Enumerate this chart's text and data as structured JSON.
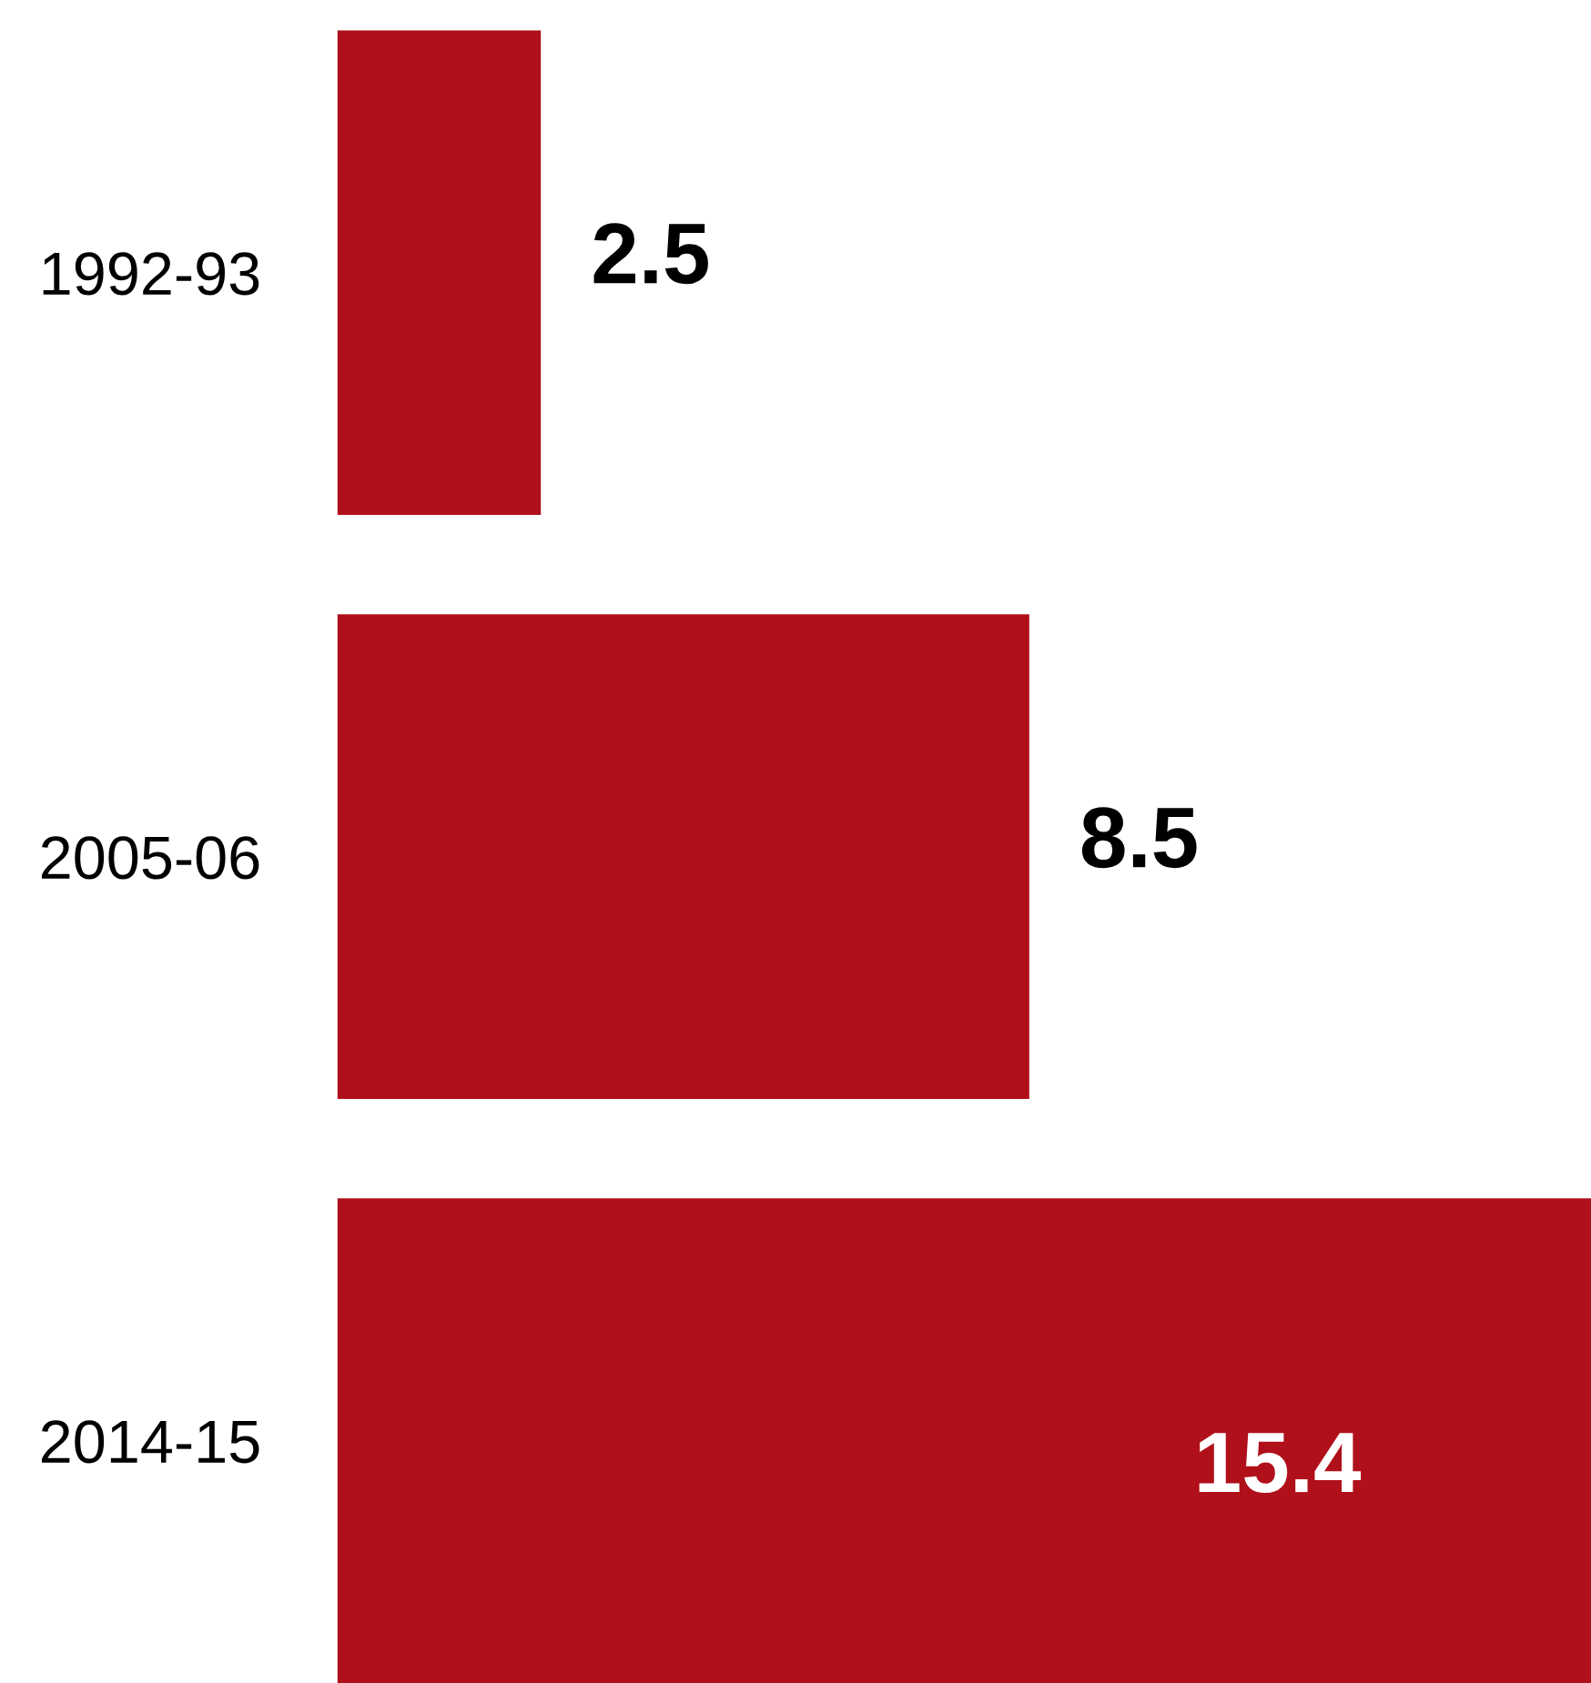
{
  "chart_data": {
    "type": "bar",
    "orientation": "horizontal",
    "categories": [
      "1992-93",
      "2005-06",
      "2014-15"
    ],
    "values": [
      2.5,
      8.5,
      15.4
    ],
    "color": "#b0101a",
    "data_labels": true,
    "tick_labels": "y",
    "grid": false,
    "legend": false
  }
}
